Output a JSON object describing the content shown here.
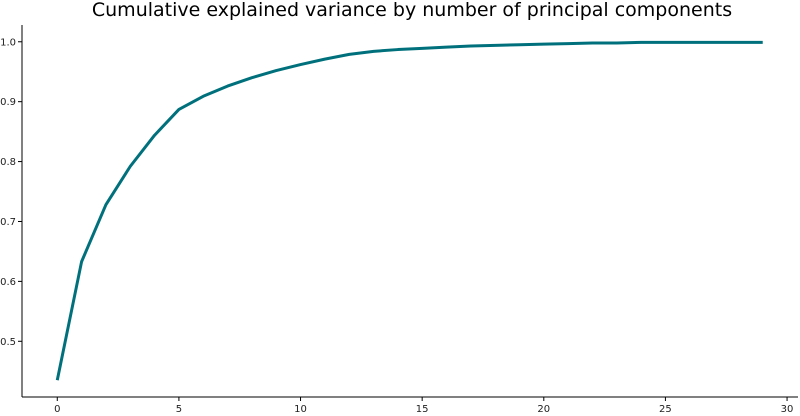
{
  "chart_data": {
    "type": "line",
    "title": "Cumulative explained variance by number of principal components",
    "xlabel": "",
    "ylabel": "",
    "xlim": [
      -1.45,
      30.45
    ],
    "ylim": [
      0.407,
      1.028
    ],
    "xticks": [
      0,
      5,
      10,
      15,
      20,
      25,
      30
    ],
    "yticks": [
      0.5,
      0.6,
      0.7,
      0.8,
      0.9,
      1.0
    ],
    "xtick_labels": [
      "0",
      "5",
      "10",
      "15",
      "20",
      "25",
      "30"
    ],
    "ytick_labels": [
      "0.5",
      "0.6",
      "0.7",
      "0.8",
      "0.9",
      "1.0"
    ],
    "grid": false,
    "legend": "none",
    "line_color": "#00717c",
    "series": [
      {
        "x": [
          0,
          1,
          2,
          3,
          4,
          5,
          6,
          7,
          8,
          9,
          10,
          11,
          12,
          13,
          14,
          15,
          16,
          17,
          18,
          19,
          20,
          21,
          22,
          23,
          24,
          25,
          26,
          27,
          28,
          29
        ],
        "y": [
          0.435,
          0.633,
          0.728,
          0.792,
          0.844,
          0.887,
          0.909,
          0.926,
          0.94,
          0.952,
          0.962,
          0.971,
          0.979,
          0.984,
          0.987,
          0.989,
          0.991,
          0.993,
          0.994,
          0.995,
          0.996,
          0.997,
          0.998,
          0.998,
          0.999,
          0.999,
          0.999,
          0.999,
          0.999,
          0.999
        ]
      }
    ]
  }
}
